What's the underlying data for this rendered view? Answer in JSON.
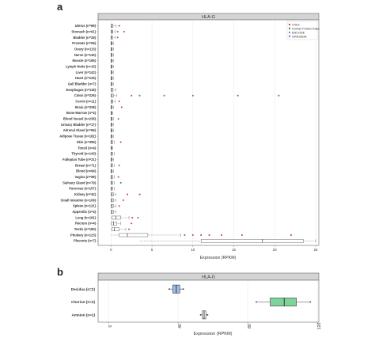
{
  "panel_a": {
    "letter": "a"
  },
  "panel_b": {
    "letter": "b"
  },
  "colors": {
    "GTEx": "#c0504d",
    "Human Protein Atlas": "#4f8f3a",
    "ENCODE": "#8f8fd0",
    "GRASSDB": "#c060c0",
    "strip_fill": "#d4d4d4",
    "box_chorion": "#7ed39a",
    "box_decidua": "#9fc0e6"
  },
  "chart_data": [
    {
      "type": "box",
      "title": "HLA-G",
      "xlabel": "Expression (RPKM)",
      "ylabel": "",
      "xlim": [
        -1,
        25
      ],
      "xticks": [
        0,
        5,
        10,
        15,
        20,
        25
      ],
      "grid": true,
      "legend_position": "top-right",
      "legend": [
        "GTEx",
        "Human Protein Atlas",
        "ENCODE",
        "GRASSDB"
      ],
      "categories": [
        "Uterus (n=89)",
        "Stomach (n=61)",
        "Bladder (n=28)",
        "Prostate (n=59)",
        "Ovary (n=113)",
        "Nerve (n=126)",
        "Muscle (n=165)",
        "Lymph Node (n=15)",
        "Liver (n=142)",
        "Heart (n=125)",
        "Gall Bladder (n=7)",
        "Esophagus (n=118)",
        "Colon (n=226)",
        "Cervix (n=11)",
        "Brain (n=328)",
        "Bone Marrow (n=4)",
        "Blood Vessel (n=236)",
        "Urinary Bladder (n=17)",
        "Adrenal Gland (n=65)",
        "Adipose Tissue (n=182)",
        "Skin (n=395)",
        "Tonsil (n=4)",
        "Thyroid (n=143)",
        "Fallopian Tube (n=21)",
        "Breast (n=71)",
        "Blood (n=94)",
        "Vagina (n=58)",
        "Salivary Gland (n=79)",
        "Pancreas (n=157)",
        "Kidney (n=42)",
        "Small Intestine (n=109)",
        "Spleen (n=121)",
        "Appendix (n=4)",
        "Lung (n=181)",
        "Rectum (n=4)",
        "Testis (n=180)",
        "Pituitary (n=123)",
        "Placenta (n=7)"
      ],
      "boxes": [
        {
          "category": "Uterus (n=89)",
          "q1": 0,
          "median": 0.1,
          "q3": 0.25,
          "min": 0,
          "max": 0.6
        },
        {
          "category": "Stomach (n=61)",
          "q1": 0,
          "median": 0.1,
          "q3": 0.2,
          "min": 0,
          "max": 0.5
        },
        {
          "category": "Bladder (n=28)",
          "q1": 0,
          "median": 0.05,
          "q3": 0.2,
          "min": 0,
          "max": 0.5
        },
        {
          "category": "Prostate (n=59)",
          "q1": 0,
          "median": 0.05,
          "q3": 0.15,
          "min": 0,
          "max": 0.3
        },
        {
          "category": "Ovary (n=113)",
          "q1": 0,
          "median": 0.05,
          "q3": 0.15,
          "min": 0,
          "max": 0.3
        },
        {
          "category": "Nerve (n=126)",
          "q1": 0,
          "median": 0.05,
          "q3": 0.15,
          "min": 0,
          "max": 0.3
        },
        {
          "category": "Muscle (n=165)",
          "q1": 0,
          "median": 0.05,
          "q3": 0.15,
          "min": 0,
          "max": 0.3
        },
        {
          "category": "Lymph Node (n=15)",
          "q1": 0,
          "median": 0.05,
          "q3": 0.15,
          "min": 0,
          "max": 0.3
        },
        {
          "category": "Liver (n=142)",
          "q1": 0,
          "median": 0.05,
          "q3": 0.15,
          "min": 0,
          "max": 0.3
        },
        {
          "category": "Heart (n=125)",
          "q1": 0,
          "median": 0.05,
          "q3": 0.15,
          "min": 0,
          "max": 0.3
        },
        {
          "category": "Gall Bladder (n=7)",
          "q1": 0,
          "median": 0.05,
          "q3": 0.15,
          "min": 0,
          "max": 0.3
        },
        {
          "category": "Esophagus (n=118)",
          "q1": 0,
          "median": 0.1,
          "q3": 0.25,
          "min": 0,
          "max": 0.6
        },
        {
          "category": "Colon (n=226)",
          "q1": 0,
          "median": 0.1,
          "q3": 0.3,
          "min": 0,
          "max": 0.7
        },
        {
          "category": "Cervix (n=11)",
          "q1": 0,
          "median": 0.1,
          "q3": 0.2,
          "min": 0,
          "max": 0.5
        },
        {
          "category": "Brain (n=328)",
          "q1": 0,
          "median": 0.05,
          "q3": 0.15,
          "min": 0,
          "max": 0.3
        },
        {
          "category": "Bone Marrow (n=4)",
          "q1": 0,
          "median": 0.05,
          "q3": 0.1,
          "min": 0,
          "max": 0.2
        },
        {
          "category": "Blood Vessel (n=236)",
          "q1": 0,
          "median": 0.05,
          "q3": 0.15,
          "min": 0,
          "max": 0.3
        },
        {
          "category": "Urinary Bladder (n=17)",
          "q1": 0,
          "median": 0.05,
          "q3": 0.15,
          "min": 0,
          "max": 0.3
        },
        {
          "category": "Adrenal Gland (n=65)",
          "q1": 0,
          "median": 0.05,
          "q3": 0.15,
          "min": 0,
          "max": 0.3
        },
        {
          "category": "Adipose Tissue (n=182)",
          "q1": 0,
          "median": 0.05,
          "q3": 0.15,
          "min": 0,
          "max": 0.3
        },
        {
          "category": "Skin (n=395)",
          "q1": 0,
          "median": 0.05,
          "q3": 0.2,
          "min": 0,
          "max": 0.4
        },
        {
          "category": "Tonsil (n=4)",
          "q1": 0,
          "median": 0.05,
          "q3": 0.1,
          "min": 0,
          "max": 0.2
        },
        {
          "category": "Thyroid (n=143)",
          "q1": 0,
          "median": 0.05,
          "q3": 0.2,
          "min": 0,
          "max": 0.4
        },
        {
          "category": "Fallopian Tube (n=21)",
          "q1": 0,
          "median": 0.05,
          "q3": 0.15,
          "min": 0,
          "max": 0.3
        },
        {
          "category": "Breast (n=71)",
          "q1": 0,
          "median": 0.05,
          "q3": 0.2,
          "min": 0,
          "max": 0.4
        },
        {
          "category": "Blood (n=94)",
          "q1": 0,
          "median": 0.05,
          "q3": 0.15,
          "min": 0,
          "max": 0.3
        },
        {
          "category": "Vagina (n=58)",
          "q1": 0,
          "median": 0.05,
          "q3": 0.2,
          "min": 0,
          "max": 0.4
        },
        {
          "category": "Salivary Gland (n=79)",
          "q1": 0,
          "median": 0.05,
          "q3": 0.2,
          "min": 0,
          "max": 0.4
        },
        {
          "category": "Pancreas (n=157)",
          "q1": 0,
          "median": 0.05,
          "q3": 0.2,
          "min": 0,
          "max": 0.4
        },
        {
          "category": "Kidney (n=42)",
          "q1": 0,
          "median": 0.1,
          "q3": 0.3,
          "min": 0,
          "max": 0.6
        },
        {
          "category": "Small Intestine (n=109)",
          "q1": 0,
          "median": 0.1,
          "q3": 0.3,
          "min": 0,
          "max": 0.6
        },
        {
          "category": "Spleen (n=121)",
          "q1": 0,
          "median": 0.1,
          "q3": 0.3,
          "min": 0,
          "max": 0.6
        },
        {
          "category": "Appendix (n=4)",
          "q1": 0,
          "median": 0.1,
          "q3": 0.3,
          "min": 0,
          "max": 0.6
        },
        {
          "category": "Lung (n=181)",
          "q1": 0.1,
          "median": 0.6,
          "q3": 1.2,
          "min": 0,
          "max": 2.2
        },
        {
          "category": "Rectum (n=4)",
          "q1": 0,
          "median": 0.3,
          "q3": 0.7,
          "min": 0,
          "max": 1.2
        },
        {
          "category": "Testis (n=180)",
          "q1": 0.1,
          "median": 0.4,
          "q3": 1.0,
          "min": 0,
          "max": 1.8
        },
        {
          "category": "Pituitary (n=123)",
          "q1": 1.0,
          "median": 2.0,
          "q3": 4.5,
          "min": 0,
          "max": 8.5
        },
        {
          "category": "Placenta (n=7)",
          "q1": 11.0,
          "median": 18.5,
          "q3": 23.5,
          "min": 3.5,
          "max": 25.0
        }
      ],
      "outliers": [
        {
          "category": "Uterus (n=89)",
          "x": 1.0,
          "source": "GTEx"
        },
        {
          "category": "Stomach (n=61)",
          "x": 1.6,
          "source": "GTEx"
        },
        {
          "category": "Stomach (n=61)",
          "x": 0.8,
          "source": "Human Protein Atlas"
        },
        {
          "category": "Bladder (n=28)",
          "x": 0.8,
          "source": "GTEx"
        },
        {
          "category": "Colon (n=226)",
          "x": 2.5,
          "source": "GTEx"
        },
        {
          "category": "Colon (n=226)",
          "x": 3.5,
          "source": "Human Protein Atlas"
        },
        {
          "category": "Colon (n=226)",
          "x": 6.5,
          "source": "GTEx"
        },
        {
          "category": "Colon (n=226)",
          "x": 10.0,
          "source": "Human Protein Atlas"
        },
        {
          "category": "Colon (n=226)",
          "x": 15.5,
          "source": "Human Protein Atlas"
        },
        {
          "category": "Colon (n=226)",
          "x": 20.5,
          "source": "Human Protein Atlas"
        },
        {
          "category": "Cervix (n=11)",
          "x": 1.0,
          "source": "GTEx"
        },
        {
          "category": "Brain (n=328)",
          "x": 1.3,
          "source": "GTEx"
        },
        {
          "category": "Blood Vessel (n=236)",
          "x": 0.9,
          "source": "GTEx"
        },
        {
          "category": "Skin (n=395)",
          "x": 1.2,
          "source": "GTEx"
        },
        {
          "category": "Breast (n=71)",
          "x": 1.0,
          "source": "GTEx"
        },
        {
          "category": "Vagina (n=58)",
          "x": 0.9,
          "source": "GTEx"
        },
        {
          "category": "Salivary Gland (n=79)",
          "x": 1.2,
          "source": "Human Protein Atlas"
        },
        {
          "category": "Kidney (n=42)",
          "x": 2.0,
          "source": "GTEx"
        },
        {
          "category": "Kidney (n=42)",
          "x": 3.5,
          "source": "GTEx"
        },
        {
          "category": "Small Intestine (n=109)",
          "x": 1.5,
          "source": "GTEx"
        },
        {
          "category": "Spleen (n=121)",
          "x": 1.0,
          "source": "GTEx"
        },
        {
          "category": "Lung (n=181)",
          "x": 2.6,
          "source": "GTEx"
        },
        {
          "category": "Lung (n=181)",
          "x": 3.3,
          "source": "GTEx"
        },
        {
          "category": "Rectum (n=4)",
          "x": 2.5,
          "source": "GTEx"
        },
        {
          "category": "Testis (n=180)",
          "x": 2.2,
          "source": "GTEx"
        },
        {
          "category": "Pituitary (n=123)",
          "x": 9.0,
          "source": "GTEx"
        },
        {
          "category": "Pituitary (n=123)",
          "x": 10.0,
          "source": "GTEx"
        },
        {
          "category": "Pituitary (n=123)",
          "x": 11.0,
          "source": "GTEx"
        },
        {
          "category": "Pituitary (n=123)",
          "x": 12.0,
          "source": "GTEx"
        },
        {
          "category": "Pituitary (n=123)",
          "x": 13.5,
          "source": "GTEx"
        },
        {
          "category": "Pituitary (n=123)",
          "x": 16.0,
          "source": "GTEx"
        },
        {
          "category": "Pituitary (n=123)",
          "x": 22.0,
          "source": "GTEx"
        }
      ]
    },
    {
      "type": "box",
      "title": "HLA-G",
      "xlabel": "Expression (RPKM)",
      "ylabel": "",
      "xlim": [
        -5,
        125
      ],
      "xticks": [
        0,
        40,
        80,
        120
      ],
      "grid": true,
      "categories": [
        "Decidua (n=2)",
        "Chorion (n=2)",
        "Amnion (n=2)"
      ],
      "boxes": [
        {
          "category": "Decidua (n=2)",
          "q1": 37,
          "median": 39,
          "q3": 41,
          "min": 35,
          "max": 43
        },
        {
          "category": "Chorion (n=2)",
          "q1": 93,
          "median": 101,
          "q3": 108,
          "min": 85,
          "max": 116
        },
        {
          "category": "Amnion (n=2)",
          "q1": 54,
          "median": 55,
          "q3": 56,
          "min": 53,
          "max": 57
        }
      ]
    }
  ]
}
